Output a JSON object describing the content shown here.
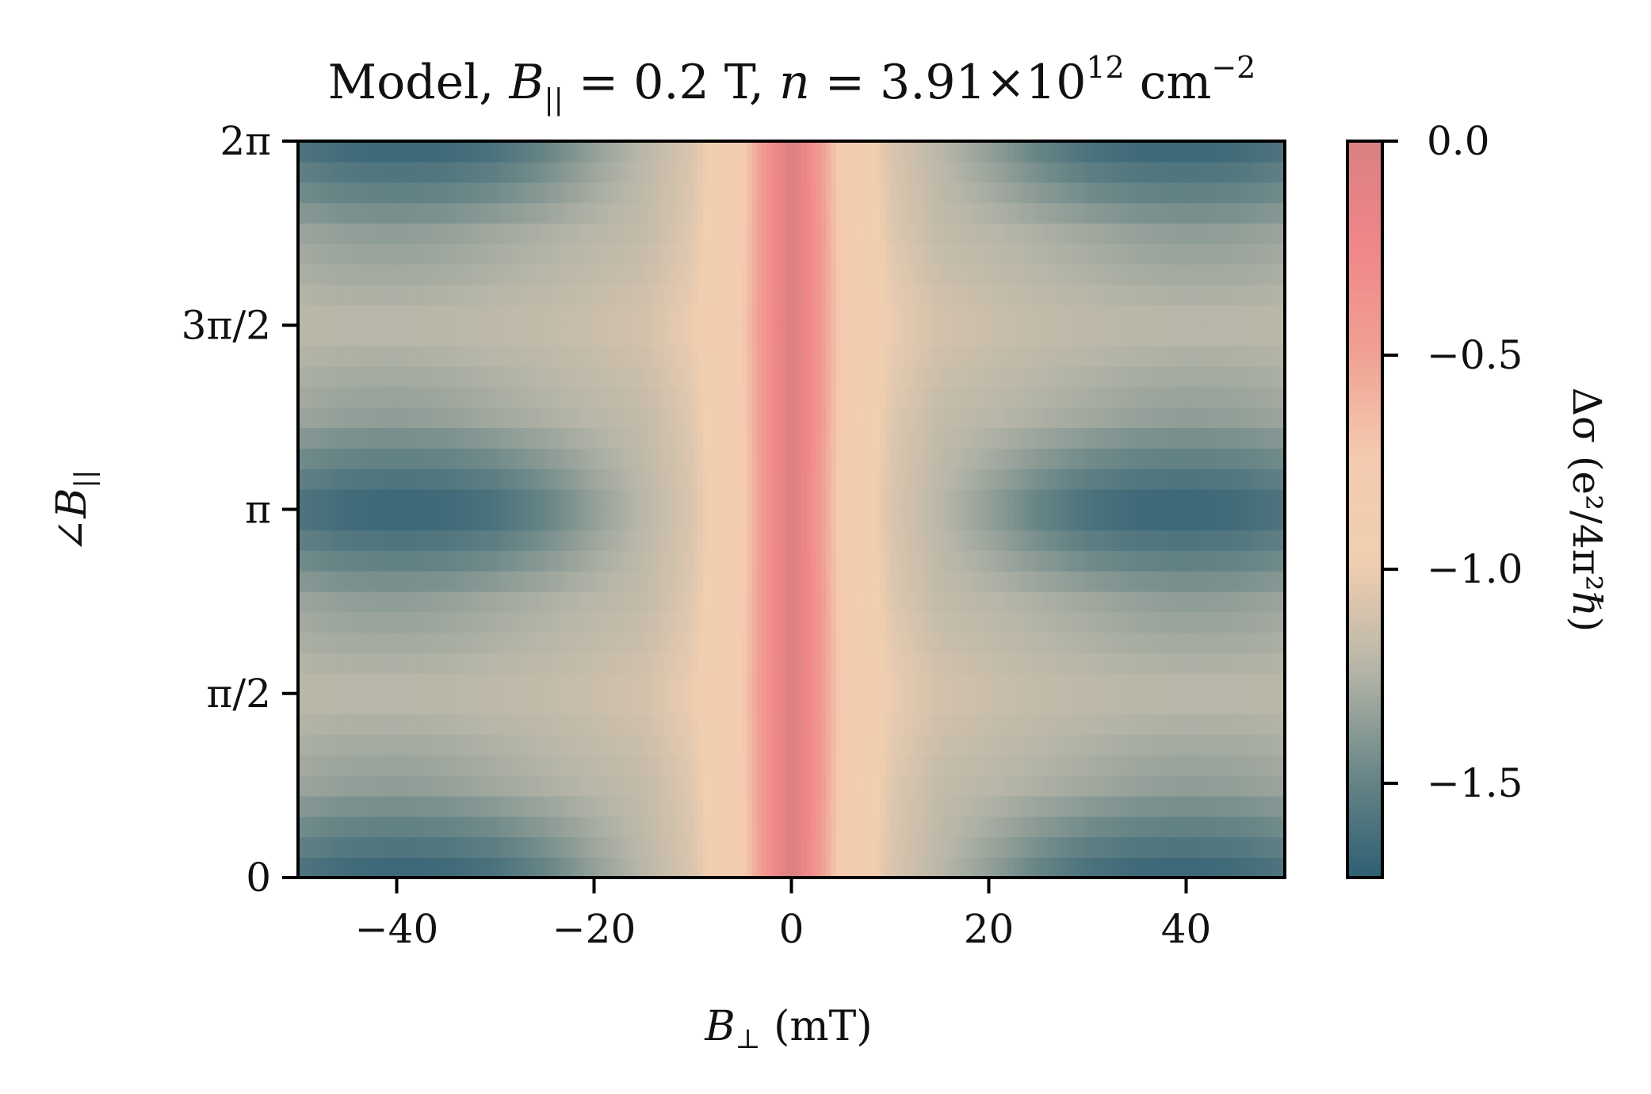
{
  "chart_data": {
    "type": "heatmap",
    "title_parts": {
      "prefix": "Model, ",
      "b": "B",
      "b_sub": "||",
      "eq1": " = 0.2 T, ",
      "n": "n",
      "eq2": " = 3.91×10",
      "exp": "12",
      "unit": " cm",
      "unit_exp": "−2"
    },
    "xlabel": {
      "symbol": "B",
      "sub": "⊥",
      "unit": " (mT)"
    },
    "ylabel": {
      "prefix": "∠",
      "symbol": "B",
      "sub": "||"
    },
    "colorbar_label": "Δσ (e²/4π²ℏ)",
    "x_ticks": [
      {
        "value": -40,
        "label": "−40"
      },
      {
        "value": -20,
        "label": "−20"
      },
      {
        "value": 0,
        "label": "0"
      },
      {
        "value": 20,
        "label": "20"
      },
      {
        "value": 40,
        "label": "40"
      }
    ],
    "y_ticks": [
      {
        "value": 0,
        "label": "0"
      },
      {
        "value": 1.5708,
        "label": "π/2"
      },
      {
        "value": 3.1416,
        "label": "π"
      },
      {
        "value": 4.7124,
        "label": "3π/2"
      },
      {
        "value": 6.2832,
        "label": "2π"
      }
    ],
    "colorbar_ticks": [
      {
        "value": 0.0,
        "label": "0.0"
      },
      {
        "value": -0.5,
        "label": "−0.5"
      },
      {
        "value": -1.0,
        "label": "−1.0"
      },
      {
        "value": -1.5,
        "label": "−1.5"
      }
    ],
    "xlim": [
      -50,
      50
    ],
    "ylim": [
      0,
      6.2832
    ],
    "clim": [
      -1.72,
      0.0
    ],
    "colormap": [
      "#2e5f73",
      "#6b8788",
      "#b7b6a8",
      "#f0ceb0",
      "#f4cbb0",
      "#f0a092",
      "#f0868a",
      "#d98080"
    ],
    "x": [
      -50,
      -45,
      -40,
      -35,
      -30,
      -25,
      -20,
      -15,
      -10,
      -5,
      0,
      5,
      10,
      15,
      20,
      25,
      30,
      35,
      40,
      45,
      50
    ],
    "y": [
      0,
      0.7854,
      1.5708,
      2.3562,
      3.1416,
      3.927,
      4.7124,
      5.4978,
      6.2832
    ],
    "z": [
      [
        -1.62,
        -1.68,
        -1.7,
        -1.69,
        -1.64,
        -1.52,
        -1.36,
        -1.22,
        -1.08,
        -0.78,
        0.0,
        -0.78,
        -1.08,
        -1.22,
        -1.36,
        -1.52,
        -1.64,
        -1.69,
        -1.7,
        -1.68,
        -1.62
      ],
      [
        -1.32,
        -1.35,
        -1.36,
        -1.34,
        -1.3,
        -1.26,
        -1.22,
        -1.18,
        -1.05,
        -0.76,
        0.0,
        -0.76,
        -1.05,
        -1.18,
        -1.22,
        -1.26,
        -1.3,
        -1.34,
        -1.36,
        -1.35,
        -1.32
      ],
      [
        -1.2,
        -1.21,
        -1.21,
        -1.2,
        -1.19,
        -1.17,
        -1.14,
        -1.1,
        -1.0,
        -0.74,
        0.0,
        -0.74,
        -1.0,
        -1.1,
        -1.14,
        -1.17,
        -1.19,
        -1.2,
        -1.21,
        -1.21,
        -1.2
      ],
      [
        -1.32,
        -1.35,
        -1.36,
        -1.34,
        -1.3,
        -1.26,
        -1.22,
        -1.18,
        -1.05,
        -0.76,
        0.0,
        -0.76,
        -1.05,
        -1.18,
        -1.22,
        -1.26,
        -1.3,
        -1.34,
        -1.36,
        -1.35,
        -1.32
      ],
      [
        -1.62,
        -1.68,
        -1.7,
        -1.69,
        -1.64,
        -1.52,
        -1.36,
        -1.22,
        -1.08,
        -0.78,
        0.0,
        -0.78,
        -1.08,
        -1.22,
        -1.36,
        -1.52,
        -1.64,
        -1.69,
        -1.7,
        -1.68,
        -1.62
      ],
      [
        -1.32,
        -1.35,
        -1.36,
        -1.34,
        -1.3,
        -1.26,
        -1.22,
        -1.18,
        -1.05,
        -0.76,
        0.0,
        -0.76,
        -1.05,
        -1.18,
        -1.22,
        -1.26,
        -1.3,
        -1.34,
        -1.36,
        -1.35,
        -1.32
      ],
      [
        -1.2,
        -1.21,
        -1.21,
        -1.2,
        -1.19,
        -1.17,
        -1.14,
        -1.1,
        -1.0,
        -0.74,
        0.0,
        -0.74,
        -1.0,
        -1.1,
        -1.14,
        -1.17,
        -1.19,
        -1.2,
        -1.21,
        -1.21,
        -1.2
      ],
      [
        -1.32,
        -1.35,
        -1.36,
        -1.34,
        -1.3,
        -1.26,
        -1.22,
        -1.18,
        -1.05,
        -0.76,
        0.0,
        -0.76,
        -1.05,
        -1.18,
        -1.22,
        -1.26,
        -1.3,
        -1.34,
        -1.36,
        -1.35,
        -1.32
      ],
      [
        -1.62,
        -1.68,
        -1.7,
        -1.69,
        -1.64,
        -1.52,
        -1.36,
        -1.22,
        -1.08,
        -0.78,
        0.0,
        -0.78,
        -1.08,
        -1.22,
        -1.36,
        -1.52,
        -1.64,
        -1.69,
        -1.7,
        -1.68,
        -1.62
      ]
    ]
  }
}
